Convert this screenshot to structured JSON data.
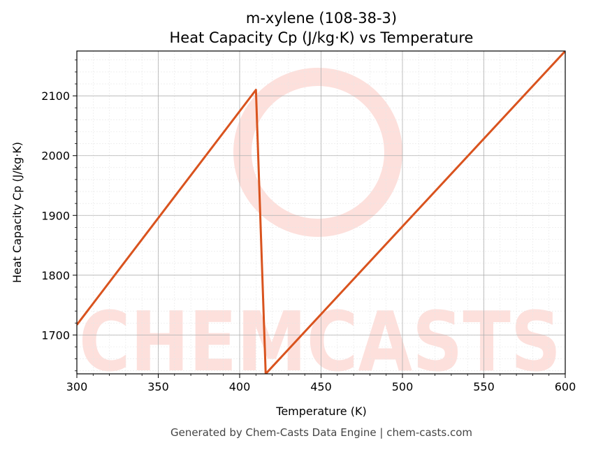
{
  "chart_data": {
    "type": "line",
    "title": "m-xylene (108-38-3)",
    "subtitle": "Heat Capacity Cp (J/kg·K) vs Temperature",
    "xlabel": "Temperature (K)",
    "ylabel": "Heat Capacity Cp (J/kg·K)",
    "xlim": [
      300,
      600
    ],
    "ylim": [
      1635,
      2175
    ],
    "xticks": [
      300,
      350,
      400,
      450,
      500,
      550,
      600
    ],
    "yticks": [
      1700,
      1800,
      1900,
      2000,
      2100
    ],
    "grid": true,
    "series": [
      {
        "color": "#d9531e",
        "x": [
          300,
          410,
          416,
          600
        ],
        "y": [
          1717,
          2110,
          1635,
          2175
        ]
      }
    ]
  },
  "watermark": {
    "text": "CHEMCASTS",
    "color": "#fde0dc"
  },
  "footer": "Generated by Chem-Casts Data Engine | chem-casts.com"
}
